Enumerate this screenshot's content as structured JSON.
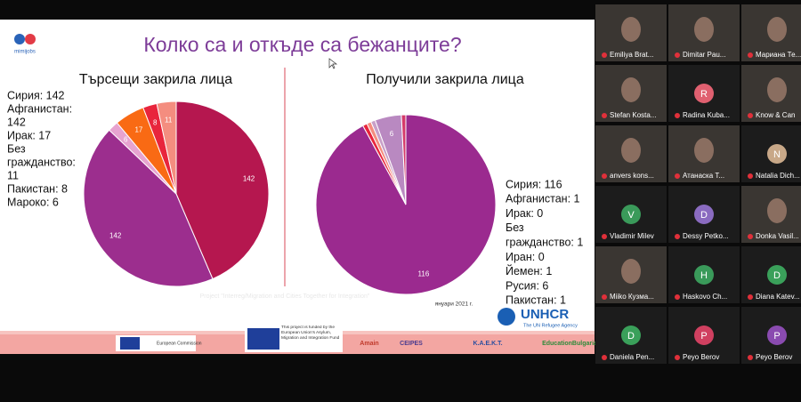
{
  "slide": {
    "title": "Колко са и откъде са бежанците?",
    "logo": "mimijobs",
    "project_note": "Project \"Interreg/Migration and Cities Together for Integration\"",
    "date": "януари 2021 г.",
    "unhcr": "UNHCR",
    "unhcr_sub": "The UN Refugee Agency",
    "eu_commission": "European Commission",
    "eu_fund": "This project is funded by the European Union's Asylum, Migration and Integration Fund",
    "partners": [
      "Amain",
      "CEIPES",
      "Κ.Α.Ε.Κ.Τ.",
      "EducationBulgaria"
    ]
  },
  "chart_data": [
    {
      "type": "pie",
      "title": "Търсещи закрила лица",
      "categories": [
        "Сирия",
        "Афганистан",
        "Мароко",
        "Ирак",
        "Пакистан",
        "Без гражданство"
      ],
      "values": [
        142,
        142,
        6,
        17,
        8,
        11
      ],
      "colors": [
        "#b5174f",
        "#9c2e8e",
        "#e7a3d0",
        "#f96a14",
        "#e8253c",
        "#f48d7f"
      ],
      "legend_lines": [
        "Сирия: 142",
        "Афганистан:",
        "142",
        "Ирак: 17",
        "Без",
        "гражданство:",
        "11",
        "Пакистан: 8",
        "Мароко: 6"
      ]
    },
    {
      "type": "pie",
      "title": "Получили закрила лица",
      "categories": [
        "Сирия",
        "Афганистан",
        "Ирак",
        "Без гражданство",
        "Иран",
        "Йемен",
        "Русия",
        "Пакистан"
      ],
      "values": [
        116,
        1,
        0,
        1,
        0,
        1,
        6,
        1
      ],
      "value_labels": [
        "116",
        null,
        null,
        null,
        null,
        null,
        "6",
        null
      ],
      "colors": [
        "#9b2a8f",
        "#e8253c",
        "#f96a14",
        "#f48d7f",
        "#e7a3d0",
        "#c9a0c8",
        "#b989c1",
        "#d43a6a"
      ],
      "legend_lines": [
        "Сирия: 116",
        "Афганистан: 1",
        "Ирак: 0",
        "Без",
        "гражданство: 1",
        "Иран: 0",
        "Йемен: 1",
        "Русия: 6",
        "Пакистан: 1"
      ]
    }
  ],
  "participants": [
    {
      "name": "Emiliya Brat..."
    },
    {
      "name": "Dimitar Pau..."
    },
    {
      "name": "Мариана Те..."
    },
    {
      "name": "Stefan Kosta..."
    },
    {
      "name": "Radina Kuba...",
      "initial": "R"
    },
    {
      "name": "Know & Can"
    },
    {
      "name": "anvers kons..."
    },
    {
      "name": "Атанаска Т..."
    },
    {
      "name": "Natalia Dich...",
      "initial": "N"
    },
    {
      "name": "Vladimir Milev",
      "initial": "V"
    },
    {
      "name": "Dessy Petko...",
      "initial": "D"
    },
    {
      "name": "Donka Vasil..."
    },
    {
      "name": "Miiko Кузма..."
    },
    {
      "name": "Haskovo Ch...",
      "initial": "H"
    },
    {
      "name": "Diana Katev...",
      "initial": "D"
    },
    {
      "name": "Daniela Pen...",
      "initial": "D"
    },
    {
      "name": "Peyo Berov",
      "initial": "P"
    },
    {
      "name": "Peyo Berov",
      "initial": "P"
    }
  ]
}
